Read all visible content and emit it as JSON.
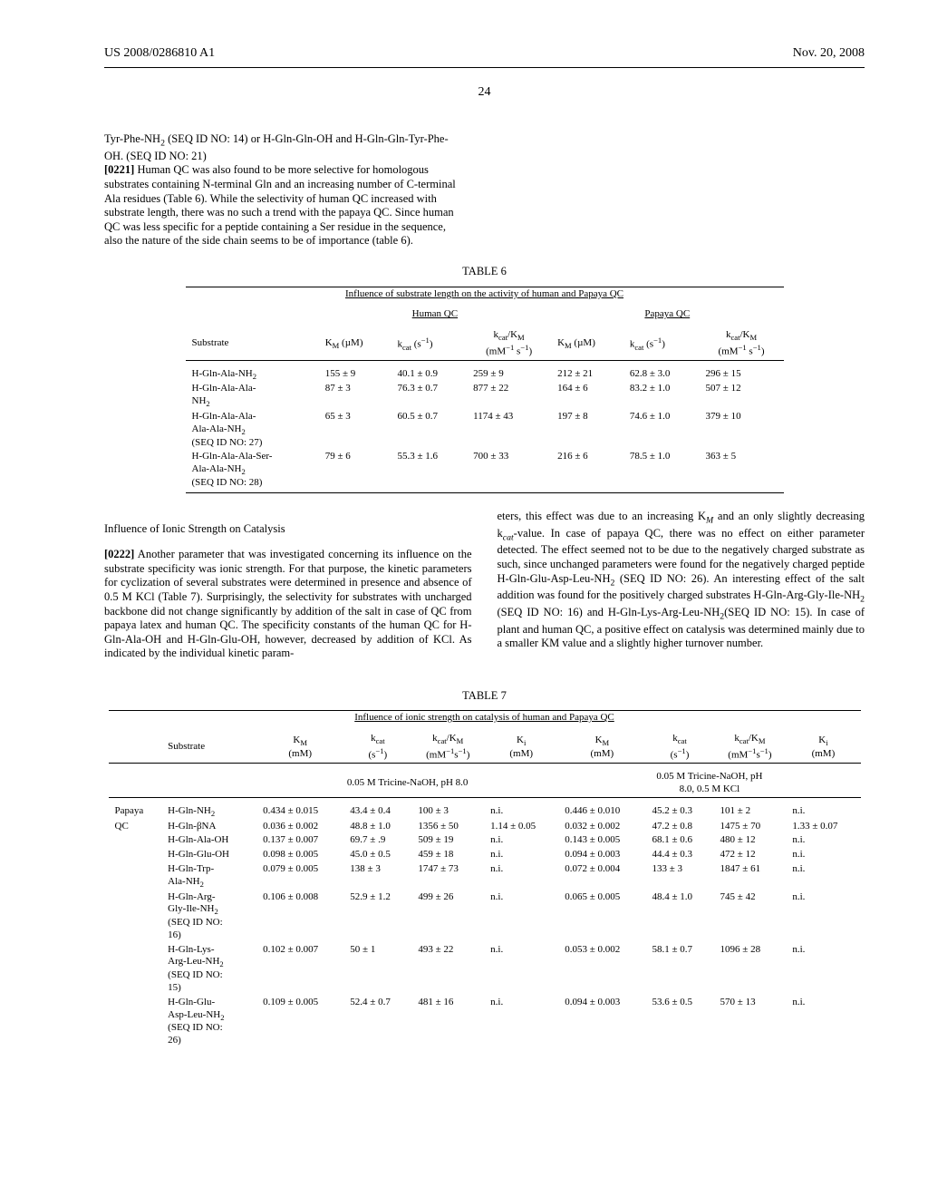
{
  "header": {
    "pub": "US 2008/0286810 A1",
    "date": "Nov. 20, 2008",
    "pagenum": "24"
  },
  "para1_a": "Tyr-Phe-NH",
  "para1_b": " (SEQ ID NO: 14) or H-Gln-Gln-OH and H-Gln-Gln-Tyr-Phe-OH. (SEQ ID NO: 21)",
  "pn0221": "[0221]",
  "para2": "   Human QC was also found to be more selective for homologous substrates containing N-terminal Gln and an increasing number of C-terminal Ala residues (Table 6). While the selectivity of human QC increased with substrate length, there was no such a trend with the papaya QC. Since human QC was less specific for a peptide containing a Ser residue in the sequence, also the nature of the side chain seems to be of importance (table 6).",
  "table6": {
    "label": "TABLE 6",
    "caption": "Influence of substrate length on the activity of human and Papaya QC",
    "group1": "Human QC",
    "group2": "Papaya QC",
    "col_substrate": "Substrate",
    "col_km": "K",
    "col_km_sub": "M",
    "col_km_unit": " (µM)",
    "col_kcat": "k",
    "col_kcat_sub": "cat",
    "col_kcat_unit": " (s",
    "col_kcat_exp": "−1",
    "col_kcat_close": ")",
    "col_ratio_top_a": "k",
    "col_ratio_top_b": "cat",
    "col_ratio_top_c": "/K",
    "col_ratio_top_d": "M",
    "col_ratio_unit_a": "(mM",
    "col_ratio_unit_b": "−1",
    "col_ratio_unit_c": " s",
    "col_ratio_unit_d": "−1",
    "col_ratio_unit_e": ")",
    "rows": [
      {
        "s1": "H-Gln-Ala-NH",
        "s1sub": "2",
        "s2": "",
        "s3": "",
        "hkm": "155 ± 9",
        "hkcat": "40.1 ± 0.9",
        "hratio": "259 ± 9",
        "pkm": "212 ± 21",
        "pkcat": "62.8 ± 3.0",
        "pratio": "296 ± 15"
      },
      {
        "s1": "H-Gln-Ala-Ala-",
        "s2l": "NH",
        "s2sub": "2",
        "s3": "",
        "hkm": "87 ± 3",
        "hkcat": "76.3 ± 0.7",
        "hratio": "877 ± 22",
        "pkm": "164 ± 6",
        "pkcat": "83.2 ± 1.0",
        "pratio": "507 ± 12"
      },
      {
        "s1": "H-Gln-Ala-Ala-",
        "s2": "Ala-Ala-NH",
        "s2sub": "2",
        "s3": "(SEQ ID NO: 27)",
        "hkm": "65 ± 3",
        "hkcat": "60.5 ± 0.7",
        "hratio": "1174 ± 43",
        "pkm": "197 ± 8",
        "pkcat": "74.6 ± 1.0",
        "pratio": "379 ± 10"
      },
      {
        "s1": "H-Gln-Ala-Ala-Ser-",
        "s2": "Ala-Ala-NH",
        "s2sub": "2",
        "s3": "(SEQ ID NO: 28)",
        "hkm": "79 ± 6",
        "hkcat": "55.3 ± 1.6",
        "hratio": "700 ± 33",
        "pkm": "216 ± 6",
        "pkcat": "78.5 ± 1.0",
        "pratio": "363 ± 5"
      }
    ]
  },
  "sub1": "Influence of Ionic Strength on Catalysis",
  "pn0222": "[0222]",
  "left2": "   Another parameter that was investigated concerning its influence on the substrate specificity was ionic strength. For that purpose, the kinetic parameters for cyclization of several substrates were determined in presence and absence of 0.5 M KCl (Table 7). Surprisingly, the selectivity for substrates with uncharged backbone did not change significantly by addition of the salt in case of QC from papaya latex and human QC. The specificity constants of the human QC for H-Gln-Ala-OH and H-Gln-Glu-OH, however, decreased by addition of KCl. As indicated by the individual kinetic param-",
  "right1_a": "eters, this effect was due to an increasing K",
  "right1_b": " and an only slightly decreasing k",
  "right1_c": "-value. In case of papaya QC, there was no effect on either parameter detected. The effect seemed not to be due to the negatively charged substrate as such, since unchanged parameters were found for the negatively charged peptide H-Gln-Glu-Asp-Leu-NH",
  "right1_d": " (SEQ ID NO: 26). An interesting effect of the salt addition was found for the positively charged substrates H-Gln-Arg-Gly-Ile-NH",
  "right1_e": " (SEQ ID NO: 16) and H-Gln-Lys-Arg-Leu-NH",
  "right1_f": "(SEQ ID NO: 15). In case of plant and human QC, a positive effect on catalysis was determined mainly due to a smaller KM value and a slightly higher turnover number.",
  "table7": {
    "label": "TABLE 7",
    "caption": "Influence of ionic strength on catalysis of human and Papaya QC",
    "buf1": "0.05 M Tricine-NaOH, pH 8.0",
    "buf2a": "0.05 M Tricine-NaOH, pH",
    "buf2b": "8.0, 0.5 M KCl",
    "col_substrate": "Substrate",
    "km_unit": "(mM)",
    "kcat_unit": "(s",
    "kcat_exp": "−1",
    "kcat_close": ")",
    "ratio_unit_a": "(mM",
    "ratio_unit_b": "−1",
    "ratio_unit_c": "s",
    "ratio_unit_d": "−1",
    "ratio_unit_e": ")",
    "ki_label": "K",
    "ki_sub": "i",
    "ki_unit": "(mM)",
    "species1": "Papaya",
    "species2": "QC",
    "rows": [
      {
        "s1": "H-Gln-NH",
        "s1sub": "2",
        "a_km": "0.434 ± 0.015",
        "a_kcat": "43.4 ± 0.4",
        "a_ratio": "100 ± 3",
        "a_ki": "n.i.",
        "b_km": "0.446 ± 0.010",
        "b_kcat": "45.2 ± 0.3",
        "b_ratio": "101 ± 2",
        "b_ki": "n.i."
      },
      {
        "s1": "H-Gln-βNA",
        "a_km": "0.036 ± 0.002",
        "a_kcat": "48.8 ± 1.0",
        "a_ratio": "1356 ± 50",
        "a_ki": "1.14 ± 0.05",
        "b_km": "0.032 ± 0.002",
        "b_kcat": "47.2 ± 0.8",
        "b_ratio": "1475 ± 70",
        "b_ki": "1.33 ± 0.07"
      },
      {
        "s1": "H-Gln-Ala-OH",
        "a_km": "0.137 ± 0.007",
        "a_kcat": "69.7 ± .9",
        "a_ratio": "509 ± 19",
        "a_ki": "n.i.",
        "b_km": "0.143 ± 0.005",
        "b_kcat": "68.1 ± 0.6",
        "b_ratio": "480 ± 12",
        "b_ki": "n.i."
      },
      {
        "s1": "H-Gln-Glu-OH",
        "a_km": "0.098 ± 0.005",
        "a_kcat": "45.0 ± 0.5",
        "a_ratio": "459 ± 18",
        "a_ki": "n.i.",
        "b_km": "0.094 ± 0.003",
        "b_kcat": "44.4 ± 0.3",
        "b_ratio": "472 ± 12",
        "b_ki": "n.i."
      },
      {
        "s1": "H-Gln-Trp-",
        "s2": "Ala-NH",
        "s2sub": "2",
        "a_km": "0.079 ± 0.005",
        "a_kcat": "138 ± 3",
        "a_ratio": "1747 ± 73",
        "a_ki": "n.i.",
        "b_km": "0.072 ± 0.004",
        "b_kcat": "133 ± 3",
        "b_ratio": "1847 ± 61",
        "b_ki": "n.i."
      },
      {
        "s1": "H-Gln-Arg-",
        "s2": "Gly-Ile-NH",
        "s2sub": "2",
        "s3": "(SEQ ID NO:",
        "s4": "16)",
        "a_km": "0.106 ± 0.008",
        "a_kcat": "52.9 ± 1.2",
        "a_ratio": "499 ± 26",
        "a_ki": "n.i.",
        "b_km": "0.065 ± 0.005",
        "b_kcat": "48.4 ± 1.0",
        "b_ratio": "745 ± 42",
        "b_ki": "n.i."
      },
      {
        "s1": "H-Gln-Lys-",
        "s2": "Arg-Leu-NH",
        "s2sub": "2",
        "s3": "(SEQ ID NO:",
        "s4": "15)",
        "a_km": "0.102 ± 0.007",
        "a_kcat": "50 ± 1",
        "a_ratio": "493 ± 22",
        "a_ki": "n.i.",
        "b_km": "0.053 ± 0.002",
        "b_kcat": "58.1 ± 0.7",
        "b_ratio": "1096 ± 28",
        "b_ki": "n.i."
      },
      {
        "s1": "H-Gln-Glu-",
        "s2": "Asp-Leu-NH",
        "s2sub": "2",
        "s3": "(SEQ ID NO:",
        "s4": "26)",
        "a_km": "0.109 ± 0.005",
        "a_kcat": "52.4 ± 0.7",
        "a_ratio": "481 ± 16",
        "a_ki": "n.i.",
        "b_km": "0.094 ± 0.003",
        "b_kcat": "53.6 ± 0.5",
        "b_ratio": "570 ± 13",
        "b_ki": "n.i."
      }
    ]
  }
}
